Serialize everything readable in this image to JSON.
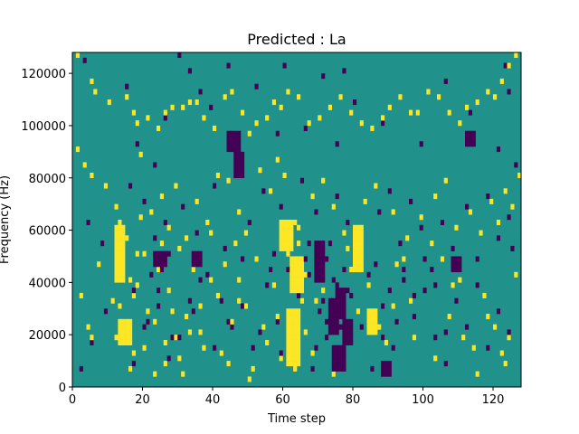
{
  "chart_data": {
    "type": "heatmap",
    "title": "Predicted : La",
    "xlabel": "Time step",
    "ylabel": "Frequency (Hz)",
    "xlim": [
      0,
      128
    ],
    "ylim": [
      0,
      128000
    ],
    "xticks": [
      0,
      20,
      40,
      60,
      80,
      100,
      120
    ],
    "yticks": [
      0,
      20000,
      40000,
      60000,
      80000,
      100000,
      120000
    ],
    "rows": 64,
    "cols": 128,
    "grid": false,
    "legend": "none",
    "colors": {
      "background": "#21918c",
      "high": "#fde725",
      "low": "#440154",
      "frame": "#000000"
    },
    "levels": {
      "background": 0,
      "high": 1,
      "low": -1
    },
    "cells": {
      "high": [
        [
          1,
          63
        ],
        [
          5,
          58
        ],
        [
          6,
          56
        ],
        [
          10,
          54
        ],
        [
          15,
          55
        ],
        [
          17,
          52
        ],
        [
          18,
          50
        ],
        [
          21,
          51
        ],
        [
          24,
          49
        ],
        [
          26,
          52
        ],
        [
          28,
          53
        ],
        [
          31,
          53
        ],
        [
          33,
          54
        ],
        [
          35,
          54
        ],
        [
          37,
          51
        ],
        [
          40,
          49
        ],
        [
          43,
          55
        ],
        [
          45,
          56
        ],
        [
          48,
          52
        ],
        [
          50,
          48
        ],
        [
          52,
          50
        ],
        [
          55,
          51
        ],
        [
          57,
          54
        ],
        [
          59,
          53
        ],
        [
          61,
          56
        ],
        [
          64,
          55
        ],
        [
          67,
          50
        ],
        [
          70,
          51
        ],
        [
          73,
          53
        ],
        [
          76,
          55
        ],
        [
          79,
          52
        ],
        [
          82,
          50
        ],
        [
          85,
          49
        ],
        [
          88,
          51
        ],
        [
          90,
          53
        ],
        [
          93,
          55
        ],
        [
          96,
          52
        ],
        [
          98,
          52
        ],
        [
          101,
          56
        ],
        [
          104,
          55
        ],
        [
          107,
          52
        ],
        [
          110,
          50
        ],
        [
          112,
          53
        ],
        [
          115,
          54
        ],
        [
          118,
          56
        ],
        [
          120,
          55
        ],
        [
          122,
          58
        ],
        [
          124,
          61
        ],
        [
          126,
          63
        ],
        [
          1,
          45
        ],
        [
          3,
          42
        ],
        [
          5,
          40
        ],
        [
          9,
          38
        ],
        [
          12,
          34
        ],
        [
          13,
          31
        ],
        [
          12,
          24
        ],
        [
          14,
          28
        ],
        [
          16,
          20
        ],
        [
          19,
          44
        ],
        [
          22,
          33
        ],
        [
          25,
          36
        ],
        [
          27,
          30
        ],
        [
          29,
          38
        ],
        [
          32,
          28
        ],
        [
          35,
          35
        ],
        [
          38,
          31
        ],
        [
          41,
          40
        ],
        [
          44,
          39
        ],
        [
          47,
          33
        ],
        [
          49,
          29
        ],
        [
          53,
          41
        ],
        [
          56,
          37
        ],
        [
          58,
          43
        ],
        [
          60,
          40
        ],
        [
          63,
          31
        ],
        [
          64,
          27
        ],
        [
          65,
          22
        ],
        [
          68,
          36
        ],
        [
          71,
          39
        ],
        [
          74,
          34
        ],
        [
          77,
          29
        ],
        [
          80,
          25
        ],
        [
          83,
          35
        ],
        [
          86,
          38
        ],
        [
          91,
          33
        ],
        [
          95,
          28
        ],
        [
          99,
          32
        ],
        [
          103,
          36
        ],
        [
          106,
          39
        ],
        [
          109,
          30
        ],
        [
          113,
          33
        ],
        [
          116,
          29
        ],
        [
          119,
          35
        ],
        [
          121,
          31
        ],
        [
          123,
          37
        ],
        [
          125,
          34
        ],
        [
          127,
          40
        ],
        [
          2,
          17
        ],
        [
          4,
          11
        ],
        [
          5,
          9
        ],
        [
          7,
          23
        ],
        [
          11,
          16
        ],
        [
          18,
          19
        ],
        [
          20,
          25
        ],
        [
          23,
          12
        ],
        [
          26,
          8
        ],
        [
          28,
          14
        ],
        [
          30,
          5
        ],
        [
          33,
          10
        ],
        [
          36,
          15
        ],
        [
          39,
          20
        ],
        [
          42,
          6
        ],
        [
          45,
          12
        ],
        [
          47,
          16
        ],
        [
          51,
          3
        ],
        [
          55,
          8
        ],
        [
          58,
          13
        ],
        [
          62,
          21
        ],
        [
          65,
          16
        ],
        [
          66,
          10
        ],
        [
          68,
          6
        ],
        [
          71,
          18
        ],
        [
          74,
          2
        ],
        [
          76,
          14
        ],
        [
          79,
          22
        ],
        [
          84,
          19
        ],
        [
          87,
          11
        ],
        [
          91,
          15
        ],
        [
          94,
          24
        ],
        [
          97,
          9
        ],
        [
          100,
          18
        ],
        [
          103,
          5
        ],
        [
          107,
          13
        ],
        [
          110,
          20
        ],
        [
          114,
          7
        ],
        [
          117,
          17
        ],
        [
          120,
          11
        ],
        [
          123,
          4
        ],
        [
          126,
          21
        ],
        [
          12,
          9
        ],
        [
          13,
          15
        ],
        [
          14,
          21
        ],
        [
          15,
          28
        ],
        [
          16,
          3
        ],
        [
          16,
          12
        ],
        [
          17,
          6
        ],
        [
          17,
          17
        ],
        [
          18,
          25
        ],
        [
          19,
          32
        ],
        [
          20,
          7
        ],
        [
          21,
          14
        ],
        [
          23,
          2
        ],
        [
          24,
          22
        ],
        [
          25,
          27
        ],
        [
          26,
          4
        ],
        [
          27,
          18
        ],
        [
          29,
          9
        ],
        [
          30,
          26
        ],
        [
          31,
          2
        ],
        [
          32,
          13
        ],
        [
          34,
          22
        ],
        [
          36,
          10
        ],
        [
          37,
          7
        ],
        [
          39,
          29
        ],
        [
          41,
          17
        ],
        [
          43,
          23
        ],
        [
          44,
          4
        ],
        [
          46,
          27
        ],
        [
          47,
          20
        ],
        [
          49,
          15
        ],
        [
          50,
          1
        ],
        [
          52,
          24
        ],
        [
          54,
          11
        ],
        [
          57,
          19
        ],
        [
          59,
          5
        ],
        [
          60,
          28
        ],
        [
          61,
          12
        ],
        [
          61,
          25
        ],
        [
          62,
          8
        ],
        [
          62,
          18
        ],
        [
          63,
          3
        ],
        [
          63,
          14
        ],
        [
          64,
          30
        ],
        [
          66,
          21
        ],
        [
          67,
          27
        ],
        [
          69,
          16
        ],
        [
          72,
          24
        ],
        [
          75,
          10
        ],
        [
          78,
          26
        ],
        [
          81,
          14
        ],
        [
          89,
          8
        ],
        [
          92,
          23
        ],
        [
          96,
          16
        ],
        [
          102,
          27
        ],
        [
          105,
          24
        ],
        [
          108,
          19
        ],
        [
          111,
          9
        ],
        [
          115,
          2
        ],
        [
          118,
          13
        ],
        [
          122,
          6
        ],
        [
          124,
          9
        ]
      ],
      "high_blocks": [
        [
          12,
          14,
          20,
          30
        ],
        [
          13,
          16,
          8,
          12
        ],
        [
          61,
          64,
          4,
          14
        ],
        [
          62,
          65,
          18,
          24
        ],
        [
          59,
          62,
          26,
          31
        ],
        [
          80,
          82,
          22,
          30
        ],
        [
          84,
          86,
          10,
          14
        ]
      ],
      "low": [
        [
          3,
          62
        ],
        [
          15,
          57
        ],
        [
          18,
          46
        ],
        [
          26,
          51
        ],
        [
          30,
          63
        ],
        [
          33,
          60
        ],
        [
          36,
          56
        ],
        [
          39,
          53
        ],
        [
          44,
          61
        ],
        [
          52,
          57
        ],
        [
          58,
          48
        ],
        [
          60,
          61
        ],
        [
          66,
          49
        ],
        [
          71,
          59
        ],
        [
          75,
          46
        ],
        [
          77,
          60
        ],
        [
          80,
          54
        ],
        [
          88,
          50
        ],
        [
          99,
          46
        ],
        [
          106,
          58
        ],
        [
          113,
          52
        ],
        [
          121,
          45
        ],
        [
          123,
          61
        ],
        [
          124,
          56
        ],
        [
          126,
          42
        ],
        [
          4,
          31
        ],
        [
          8,
          27
        ],
        [
          12,
          22
        ],
        [
          16,
          38
        ],
        [
          20,
          35
        ],
        [
          23,
          42
        ],
        [
          27,
          25
        ],
        [
          31,
          34
        ],
        [
          35,
          29
        ],
        [
          40,
          38
        ],
        [
          43,
          26
        ],
        [
          46,
          40
        ],
        [
          50,
          31
        ],
        [
          54,
          37
        ],
        [
          57,
          25
        ],
        [
          59,
          34
        ],
        [
          62,
          29
        ],
        [
          65,
          39
        ],
        [
          67,
          27
        ],
        [
          69,
          33
        ],
        [
          72,
          24
        ],
        [
          75,
          36
        ],
        [
          78,
          31
        ],
        [
          81,
          28
        ],
        [
          84,
          21
        ],
        [
          87,
          33
        ],
        [
          90,
          37
        ],
        [
          93,
          27
        ],
        [
          96,
          35
        ],
        [
          99,
          30
        ],
        [
          102,
          22
        ],
        [
          105,
          31
        ],
        [
          108,
          26
        ],
        [
          112,
          34
        ],
        [
          115,
          24
        ],
        [
          118,
          36
        ],
        [
          121,
          28
        ],
        [
          124,
          32
        ],
        [
          125,
          26
        ],
        [
          2,
          3
        ],
        [
          5,
          8
        ],
        [
          9,
          14
        ],
        [
          17,
          4
        ],
        [
          20,
          11
        ],
        [
          24,
          18
        ],
        [
          27,
          5
        ],
        [
          30,
          9
        ],
        [
          33,
          16
        ],
        [
          36,
          20
        ],
        [
          40,
          7
        ],
        [
          44,
          12
        ],
        [
          48,
          15
        ],
        [
          53,
          10
        ],
        [
          56,
          22
        ],
        [
          59,
          6
        ],
        [
          63,
          19
        ],
        [
          66,
          24
        ],
        [
          68,
          3
        ],
        [
          70,
          14
        ],
        [
          72,
          9
        ],
        [
          74,
          20
        ],
        [
          76,
          5
        ],
        [
          79,
          17
        ],
        [
          82,
          11
        ],
        [
          85,
          3
        ],
        [
          88,
          15
        ],
        [
          91,
          7
        ],
        [
          94,
          22
        ],
        [
          97,
          13
        ],
        [
          100,
          18
        ],
        [
          103,
          9
        ],
        [
          106,
          4
        ],
        [
          109,
          16
        ],
        [
          112,
          11
        ],
        [
          115,
          19
        ],
        [
          118,
          7
        ],
        [
          121,
          14
        ],
        [
          124,
          10
        ],
        [
          17,
          18
        ],
        [
          21,
          12
        ],
        [
          22,
          21
        ],
        [
          23,
          28
        ],
        [
          24,
          15
        ],
        [
          25,
          22
        ],
        [
          26,
          31
        ],
        [
          28,
          9
        ],
        [
          34,
          14
        ],
        [
          38,
          21
        ],
        [
          42,
          16
        ],
        [
          45,
          11
        ],
        [
          48,
          24
        ],
        [
          51,
          7
        ],
        [
          55,
          19
        ],
        [
          58,
          12
        ],
        [
          61,
          22
        ],
        [
          64,
          17
        ],
        [
          67,
          21
        ],
        [
          69,
          7
        ],
        [
          71,
          16
        ],
        [
          72,
          12
        ],
        [
          73,
          27
        ],
        [
          74,
          14
        ],
        [
          75,
          19
        ],
        [
          76,
          11
        ],
        [
          77,
          22
        ],
        [
          78,
          18
        ],
        [
          81,
          25
        ],
        [
          84,
          13
        ],
        [
          86,
          23
        ],
        [
          88,
          9
        ],
        [
          90,
          18
        ],
        [
          92,
          12
        ],
        [
          94,
          20
        ],
        [
          97,
          17
        ],
        [
          100,
          24
        ],
        [
          103,
          19
        ],
        [
          106,
          10
        ],
        [
          109,
          22
        ]
      ],
      "low_blocks": [
        [
          23,
          26,
          23,
          25
        ],
        [
          34,
          36,
          23,
          25
        ],
        [
          44,
          47,
          45,
          48
        ],
        [
          46,
          48,
          40,
          44
        ],
        [
          69,
          71,
          20,
          27
        ],
        [
          73,
          75,
          10,
          16
        ],
        [
          74,
          77,
          3,
          7
        ],
        [
          77,
          79,
          8,
          12
        ],
        [
          75,
          77,
          13,
          18
        ],
        [
          88,
          90,
          2,
          4
        ],
        [
          108,
          110,
          22,
          24
        ],
        [
          112,
          114,
          46,
          48
        ]
      ]
    }
  }
}
